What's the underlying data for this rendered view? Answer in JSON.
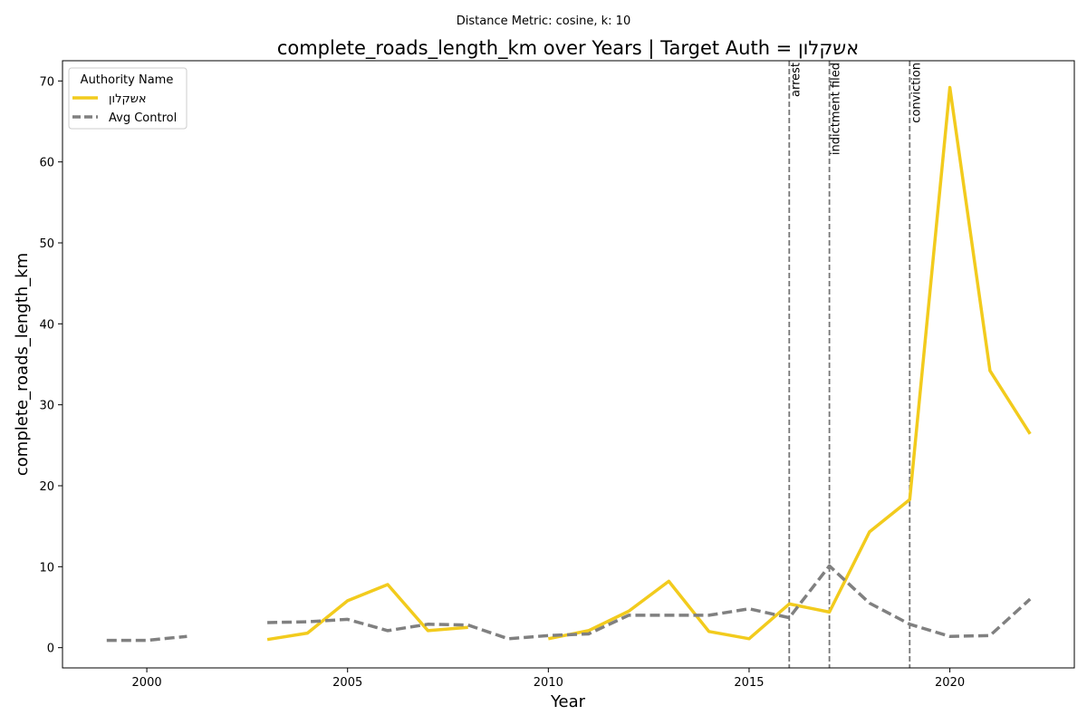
{
  "chart_data": {
    "type": "line",
    "suptitle": "Distance Metric: cosine, k: 10",
    "title": "complete_roads_length_km over Years | Target Auth = אשקלון",
    "xlabel": "Year",
    "ylabel": "complete_roads_length_km",
    "xlim": [
      1997.9,
      2023.1
    ],
    "ylim": [
      -2.5,
      72.5
    ],
    "xticks": [
      2000,
      2005,
      2010,
      2015,
      2020
    ],
    "yticks": [
      0,
      10,
      20,
      30,
      40,
      50,
      60,
      70
    ],
    "grid": false,
    "legend": {
      "title": "Authority Name",
      "placement": "top-left"
    },
    "series": [
      {
        "name": "אשקלון",
        "color": "#f2cb1d",
        "style": "solid",
        "x": [
          1999,
          2000,
          2001,
          2002,
          2003,
          2004,
          2005,
          2006,
          2007,
          2008,
          2009,
          2010,
          2011,
          2012,
          2013,
          2014,
          2015,
          2016,
          2017,
          2018,
          2019,
          2020,
          2021,
          2022
        ],
        "y": [
          null,
          null,
          null,
          null,
          1.0,
          1.8,
          5.8,
          7.8,
          2.1,
          2.5,
          null,
          1.1,
          2.1,
          4.5,
          8.2,
          2.0,
          1.1,
          5.4,
          4.4,
          14.3,
          18.3,
          69.2,
          34.2,
          26.4
        ]
      },
      {
        "name": "Avg Control",
        "color": "#808080",
        "style": "dashed",
        "x": [
          1999,
          2000,
          2001,
          2002,
          2003,
          2004,
          2005,
          2006,
          2007,
          2008,
          2009,
          2010,
          2011,
          2012,
          2013,
          2014,
          2015,
          2016,
          2017,
          2018,
          2019,
          2020,
          2021,
          2022
        ],
        "y": [
          0.9,
          0.9,
          1.4,
          null,
          3.1,
          3.2,
          3.5,
          2.1,
          2.9,
          2.8,
          1.1,
          1.5,
          1.7,
          4.0,
          4.0,
          4.0,
          4.8,
          3.7,
          10.1,
          5.5,
          2.9,
          1.4,
          1.5,
          6.0
        ]
      }
    ],
    "events": [
      {
        "year": 2016,
        "label": "arrest"
      },
      {
        "year": 2017,
        "label": "indictment filed"
      },
      {
        "year": 2019,
        "label": "conviction"
      }
    ],
    "event_line_color": "#777777"
  }
}
